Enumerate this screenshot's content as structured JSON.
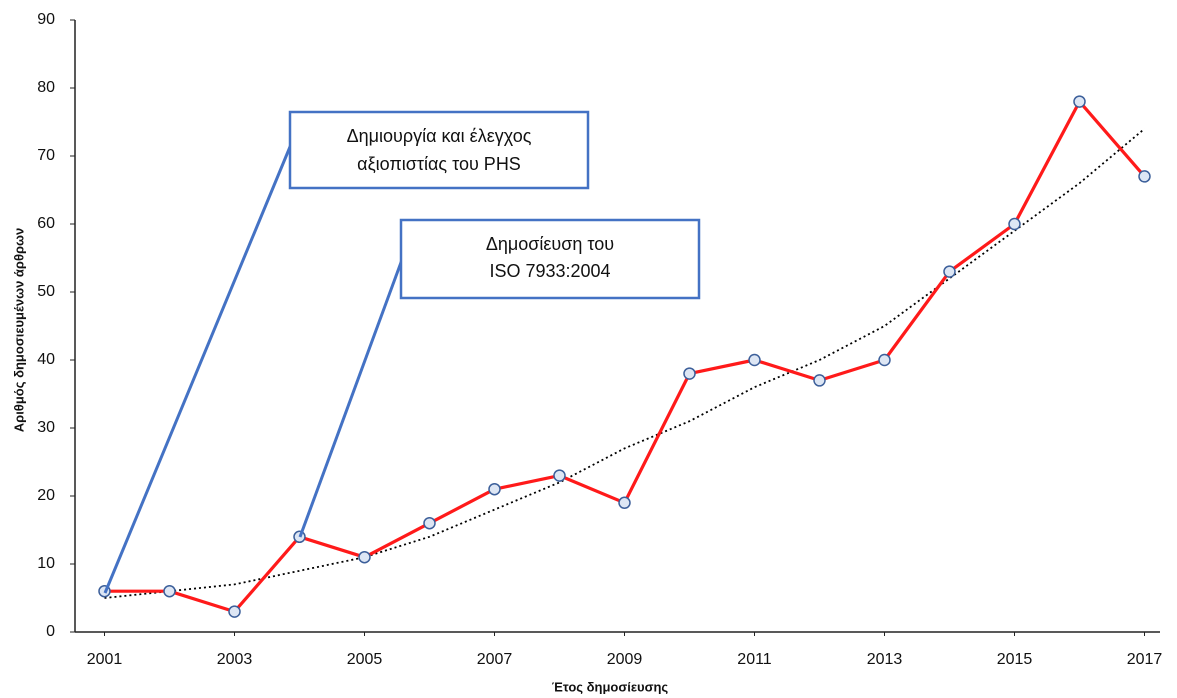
{
  "chart_data": {
    "type": "line",
    "x": [
      2001,
      2002,
      2003,
      2004,
      2005,
      2006,
      2007,
      2008,
      2009,
      2010,
      2011,
      2012,
      2013,
      2014,
      2015,
      2016,
      2017
    ],
    "series": [
      {
        "color": "#ff1a1a",
        "markers": true,
        "values": [
          6,
          6,
          3,
          14,
          11,
          16,
          21,
          23,
          19,
          38,
          40,
          37,
          40,
          53,
          60,
          78,
          67
        ]
      },
      {
        "color": "#000000",
        "dash": "dotted",
        "values": [
          5,
          6,
          7,
          9,
          11,
          14,
          18,
          22,
          27,
          31,
          36,
          40,
          45,
          52,
          59,
          66,
          74
        ]
      }
    ],
    "xlim": [
      2000.5,
      2017.5
    ],
    "xticks": [
      2001,
      2003,
      2005,
      2007,
      2009,
      2011,
      2013,
      2015,
      2017
    ],
    "ylim": [
      0,
      90
    ],
    "yticks": [
      0,
      10,
      20,
      30,
      40,
      50,
      60,
      70,
      80,
      90
    ],
    "x_label": "Έτος δημοσίευσης",
    "y_label": "Αριθμός δημοσιευμένων άρθρων",
    "annotations": [
      {
        "lines": [
          "Δημιουργία και έλεγχος",
          "αξιοπιστίας του PHS"
        ]
      },
      {
        "lines": [
          "Δημοσίευση του",
          "ISO 7933:2004"
        ]
      }
    ]
  }
}
